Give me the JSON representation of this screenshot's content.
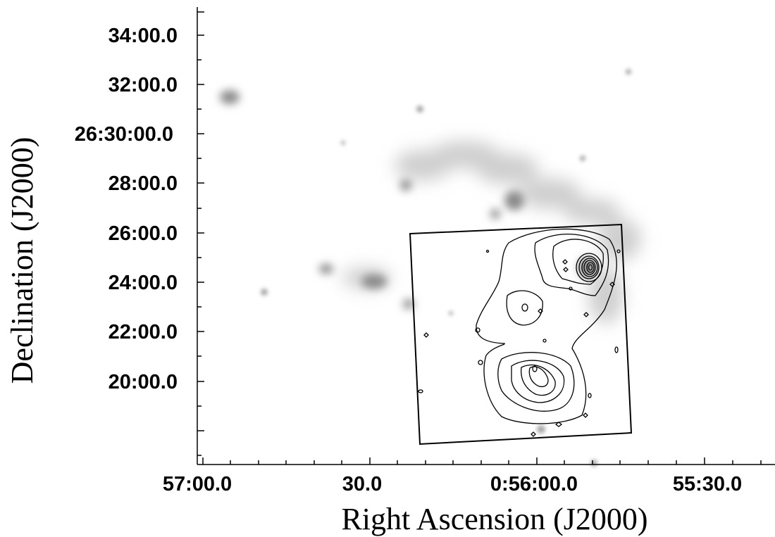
{
  "figure": {
    "xlabel": "Right Ascension (J2000)",
    "ylabel": "Declination (J2000)",
    "xticks": [
      "57:00.0",
      "30.0",
      "0:56:00.0",
      "55:30.0"
    ],
    "yticks": [
      "34:00.0",
      "32:00.0",
      "26:30:00.0",
      "28:00.0",
      "26:00.0",
      "24:00.0",
      "22:00.0",
      "20:00.0"
    ],
    "colors": {
      "background": "#ffffff",
      "contour": "#000000",
      "emission": "#7a7a7a"
    }
  }
}
